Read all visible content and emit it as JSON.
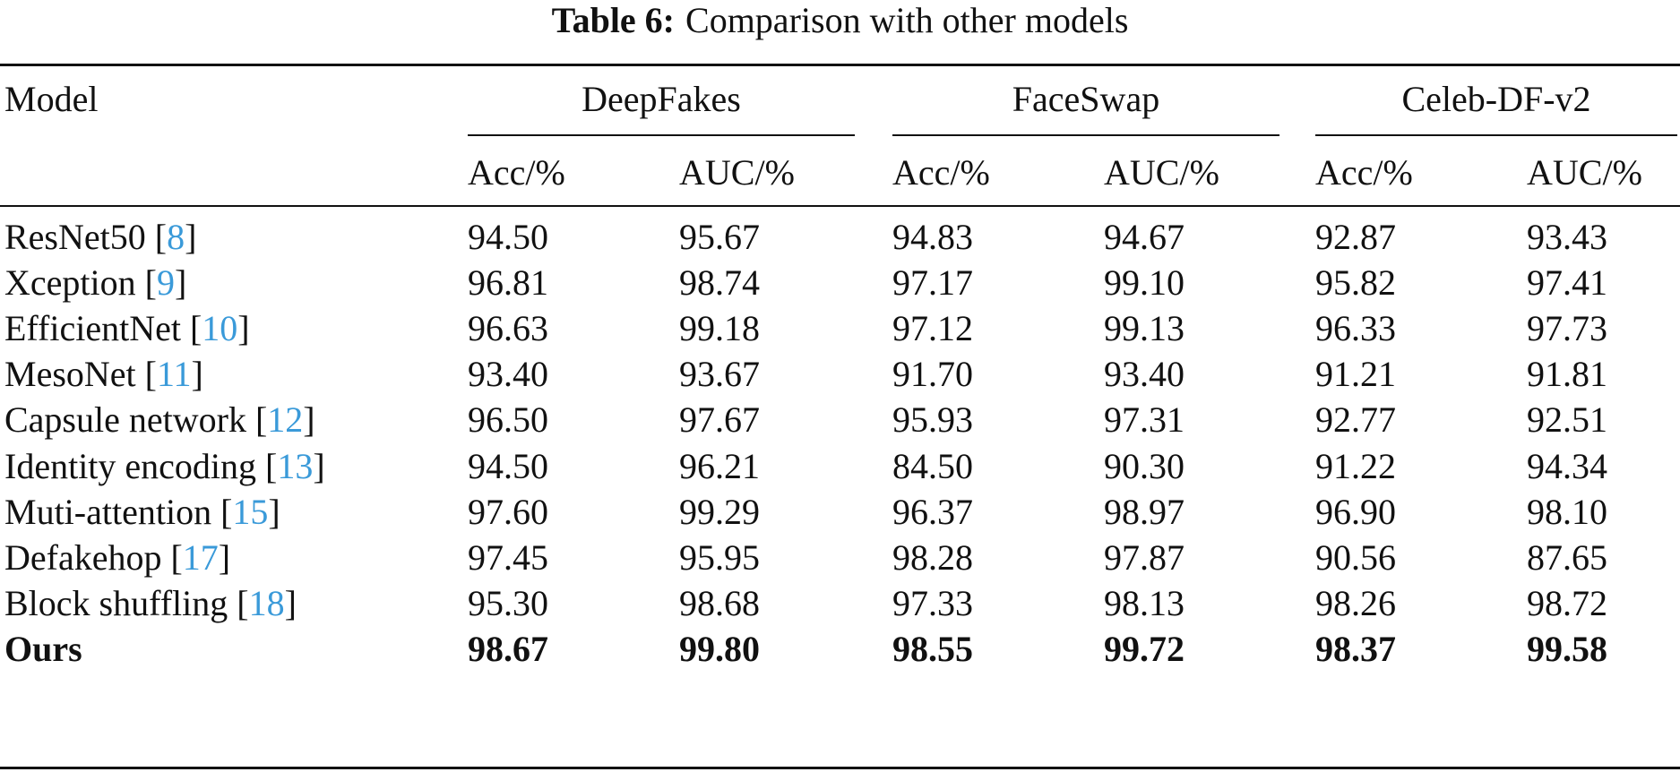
{
  "caption": {
    "label": "Table 6:",
    "text": "Comparison with other models"
  },
  "header": {
    "model": "Model",
    "groups": [
      "DeepFakes",
      "FaceSwap",
      "Celeb-DF-v2"
    ],
    "metrics": [
      "Acc/%",
      "AUC/%",
      "Acc/%",
      "AUC/%",
      "Acc/%",
      "AUC/%"
    ]
  },
  "rows": [
    {
      "name": "ResNet50 ",
      "ref": "8",
      "values": [
        "94.50",
        "95.67",
        "94.83",
        "94.67",
        "92.87",
        "93.43"
      ]
    },
    {
      "name": "Xception ",
      "ref": "9",
      "values": [
        "96.81",
        "98.74",
        "97.17",
        "99.10",
        "95.82",
        "97.41"
      ]
    },
    {
      "name": "EfficientNet ",
      "ref": "10",
      "values": [
        "96.63",
        "99.18",
        "97.12",
        "99.13",
        "96.33",
        "97.73"
      ]
    },
    {
      "name": "MesoNet ",
      "ref": "11",
      "values": [
        "93.40",
        "93.67",
        "91.70",
        "93.40",
        "91.21",
        "91.81"
      ]
    },
    {
      "name": "Capsule network ",
      "ref": "12",
      "values": [
        "96.50",
        "97.67",
        "95.93",
        "97.31",
        "92.77",
        "92.51"
      ]
    },
    {
      "name": "Identity encoding ",
      "ref": "13",
      "values": [
        "94.50",
        "96.21",
        "84.50",
        "90.30",
        "91.22",
        "94.34"
      ]
    },
    {
      "name": "Muti-attention ",
      "ref": "15",
      "values": [
        "97.60",
        "99.29",
        "96.37",
        "98.97",
        "96.90",
        "98.10"
      ]
    },
    {
      "name": "Defakehop ",
      "ref": "17",
      "values": [
        "97.45",
        "95.95",
        "98.28",
        "97.87",
        "90.56",
        "87.65"
      ]
    },
    {
      "name": "Block shuffling ",
      "ref": "18",
      "values": [
        "95.30",
        "98.68",
        "97.33",
        "98.13",
        "98.26",
        "98.72"
      ]
    },
    {
      "name": "Ours",
      "ref": "",
      "values": [
        "98.67",
        "99.80",
        "98.55",
        "99.72",
        "98.37",
        "99.58"
      ],
      "bold": true
    }
  ],
  "colors": {
    "text": "#111111",
    "reference_link": "#3a9ad9",
    "background": "#ffffff"
  }
}
